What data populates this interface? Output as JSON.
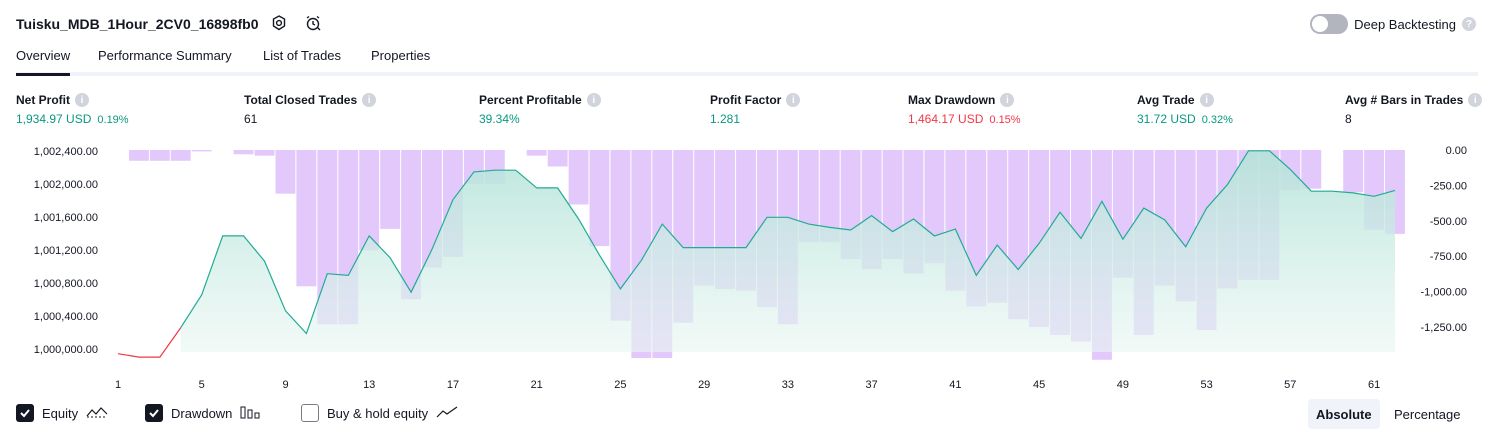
{
  "header": {
    "strategy_name": "Tuisku_MDB_1Hour_2CV0_16898fb0",
    "settings_icon": "settings-icon",
    "alert_icon": "alarm-clock-icon",
    "deep_backtesting_label": "Deep Backtesting",
    "deep_backtesting_on": false
  },
  "tabs": [
    {
      "label": "Overview",
      "active": true
    },
    {
      "label": "Performance Summary",
      "active": false
    },
    {
      "label": "List of Trades",
      "active": false
    },
    {
      "label": "Properties",
      "active": false
    }
  ],
  "stats": [
    {
      "label": "Net Profit",
      "value": "1,934.97 USD",
      "pct": "0.19%",
      "color": "green"
    },
    {
      "label": "Total Closed Trades",
      "value": "61",
      "pct": "",
      "color": "black"
    },
    {
      "label": "Percent Profitable",
      "value": "39.34%",
      "pct": "",
      "color": "green"
    },
    {
      "label": "Profit Factor",
      "value": "1.281",
      "pct": "",
      "color": "green"
    },
    {
      "label": "Max Drawdown",
      "value": "1,464.17 USD",
      "pct": "0.15%",
      "color": "red"
    },
    {
      "label": "Avg Trade",
      "value": "31.72 USD",
      "pct": "0.32%",
      "color": "green"
    },
    {
      "label": "Avg # Bars in Trades",
      "value": "8",
      "pct": "",
      "color": "black"
    }
  ],
  "chart_data": {
    "type": "area",
    "left_axis_ticks": [
      "1,002,400.00",
      "1,002,000.00",
      "1,001,600.00",
      "1,001,200.00",
      "1,000,800.00",
      "1,000,400.00",
      "1,000,000.00"
    ],
    "right_axis_ticks": [
      "0.00",
      "-250.00",
      "-500.00",
      "-750.00",
      "-1,000.00",
      "-1,250.00"
    ],
    "x_ticks": [
      "1",
      "5",
      "9",
      "13",
      "17",
      "21",
      "25",
      "29",
      "33",
      "37",
      "41",
      "45",
      "49",
      "53",
      "57",
      "61"
    ],
    "ylim_equity": [
      1000000,
      1002400
    ],
    "ylim_drawdown": [
      -1464.17,
      0
    ],
    "series": [
      {
        "name": "Equity",
        "x": [
          1,
          2,
          3,
          4,
          5,
          6,
          7,
          8,
          9,
          10,
          11,
          12,
          13,
          14,
          15,
          16,
          17,
          18,
          19,
          20,
          21,
          22,
          23,
          24,
          25,
          26,
          27,
          28,
          29,
          30,
          31,
          32,
          33,
          34,
          35,
          36,
          37,
          38,
          39,
          40,
          41,
          42,
          43,
          44,
          45,
          46,
          47,
          48,
          49,
          50,
          51,
          52,
          53,
          54,
          55,
          56,
          57,
          58,
          59,
          60,
          61,
          62
        ],
        "values": [
          999980,
          999940,
          999940,
          1000290,
          1000680,
          1001380,
          1001380,
          1001080,
          1000490,
          1000220,
          1000930,
          1000910,
          1001380,
          1001120,
          1000710,
          1001220,
          1001810,
          1002140,
          1002160,
          1002160,
          1001950,
          1001950,
          1001580,
          1001150,
          1000750,
          1001090,
          1001520,
          1001240,
          1001240,
          1001240,
          1001240,
          1001600,
          1001600,
          1001520,
          1001480,
          1001450,
          1001620,
          1001430,
          1001580,
          1001380,
          1001460,
          1000910,
          1001270,
          1000980,
          1001290,
          1001660,
          1001350,
          1001790,
          1001340,
          1001710,
          1001570,
          1001250,
          1001710,
          1001990,
          1002390,
          1002390,
          1002170,
          1001910,
          1001910,
          1001890,
          1001850,
          1001920
        ]
      },
      {
        "name": "Drawdown",
        "x": [
          1,
          2,
          3,
          4,
          5,
          6,
          7,
          8,
          9,
          10,
          11,
          12,
          13,
          14,
          15,
          16,
          17,
          18,
          19,
          20,
          21,
          22,
          23,
          24,
          25,
          26,
          27,
          28,
          29,
          30,
          31,
          32,
          33,
          34,
          35,
          36,
          37,
          38,
          39,
          40,
          41,
          42,
          43,
          44,
          45,
          46,
          47,
          48,
          49,
          50,
          51,
          52,
          53,
          54,
          55,
          56,
          57,
          58,
          59,
          60,
          61,
          62
        ],
        "values": [
          0,
          -75,
          -75,
          -75,
          -10,
          0,
          -30,
          -40,
          -305,
          -950,
          -1215,
          -1215,
          -700,
          -550,
          -1040,
          -820,
          -745,
          -235,
          -235,
          0,
          -40,
          -115,
          -380,
          -670,
          -1190,
          -1450,
          -1450,
          -1205,
          -945,
          -970,
          -980,
          -1095,
          -1215,
          -640,
          -640,
          -760,
          -830,
          -760,
          -860,
          -790,
          -980,
          -1090,
          -1065,
          -1180,
          -1235,
          -1290,
          -1335,
          -1463,
          -890,
          -1290,
          -945,
          -1055,
          -1255,
          -965,
          -905,
          -905,
          -280,
          -270,
          0,
          -295,
          -555,
          -585
        ]
      }
    ]
  },
  "legend": [
    {
      "label": "Equity",
      "checked": true,
      "icon": "equity-line-icon"
    },
    {
      "label": "Drawdown",
      "checked": true,
      "icon": "drawdown-bars-icon"
    },
    {
      "label": "Buy & hold equity",
      "checked": false,
      "icon": "buy-hold-line-icon"
    }
  ],
  "view_toggle": {
    "absolute": "Absolute",
    "percentage": "Percentage",
    "selected": "Absolute"
  },
  "colors": {
    "equity_line": "#22ab94",
    "equity_fill": "#d9f0eb",
    "drawdown_fill": "#e1c6fb",
    "negative_equity": "#f23645"
  }
}
